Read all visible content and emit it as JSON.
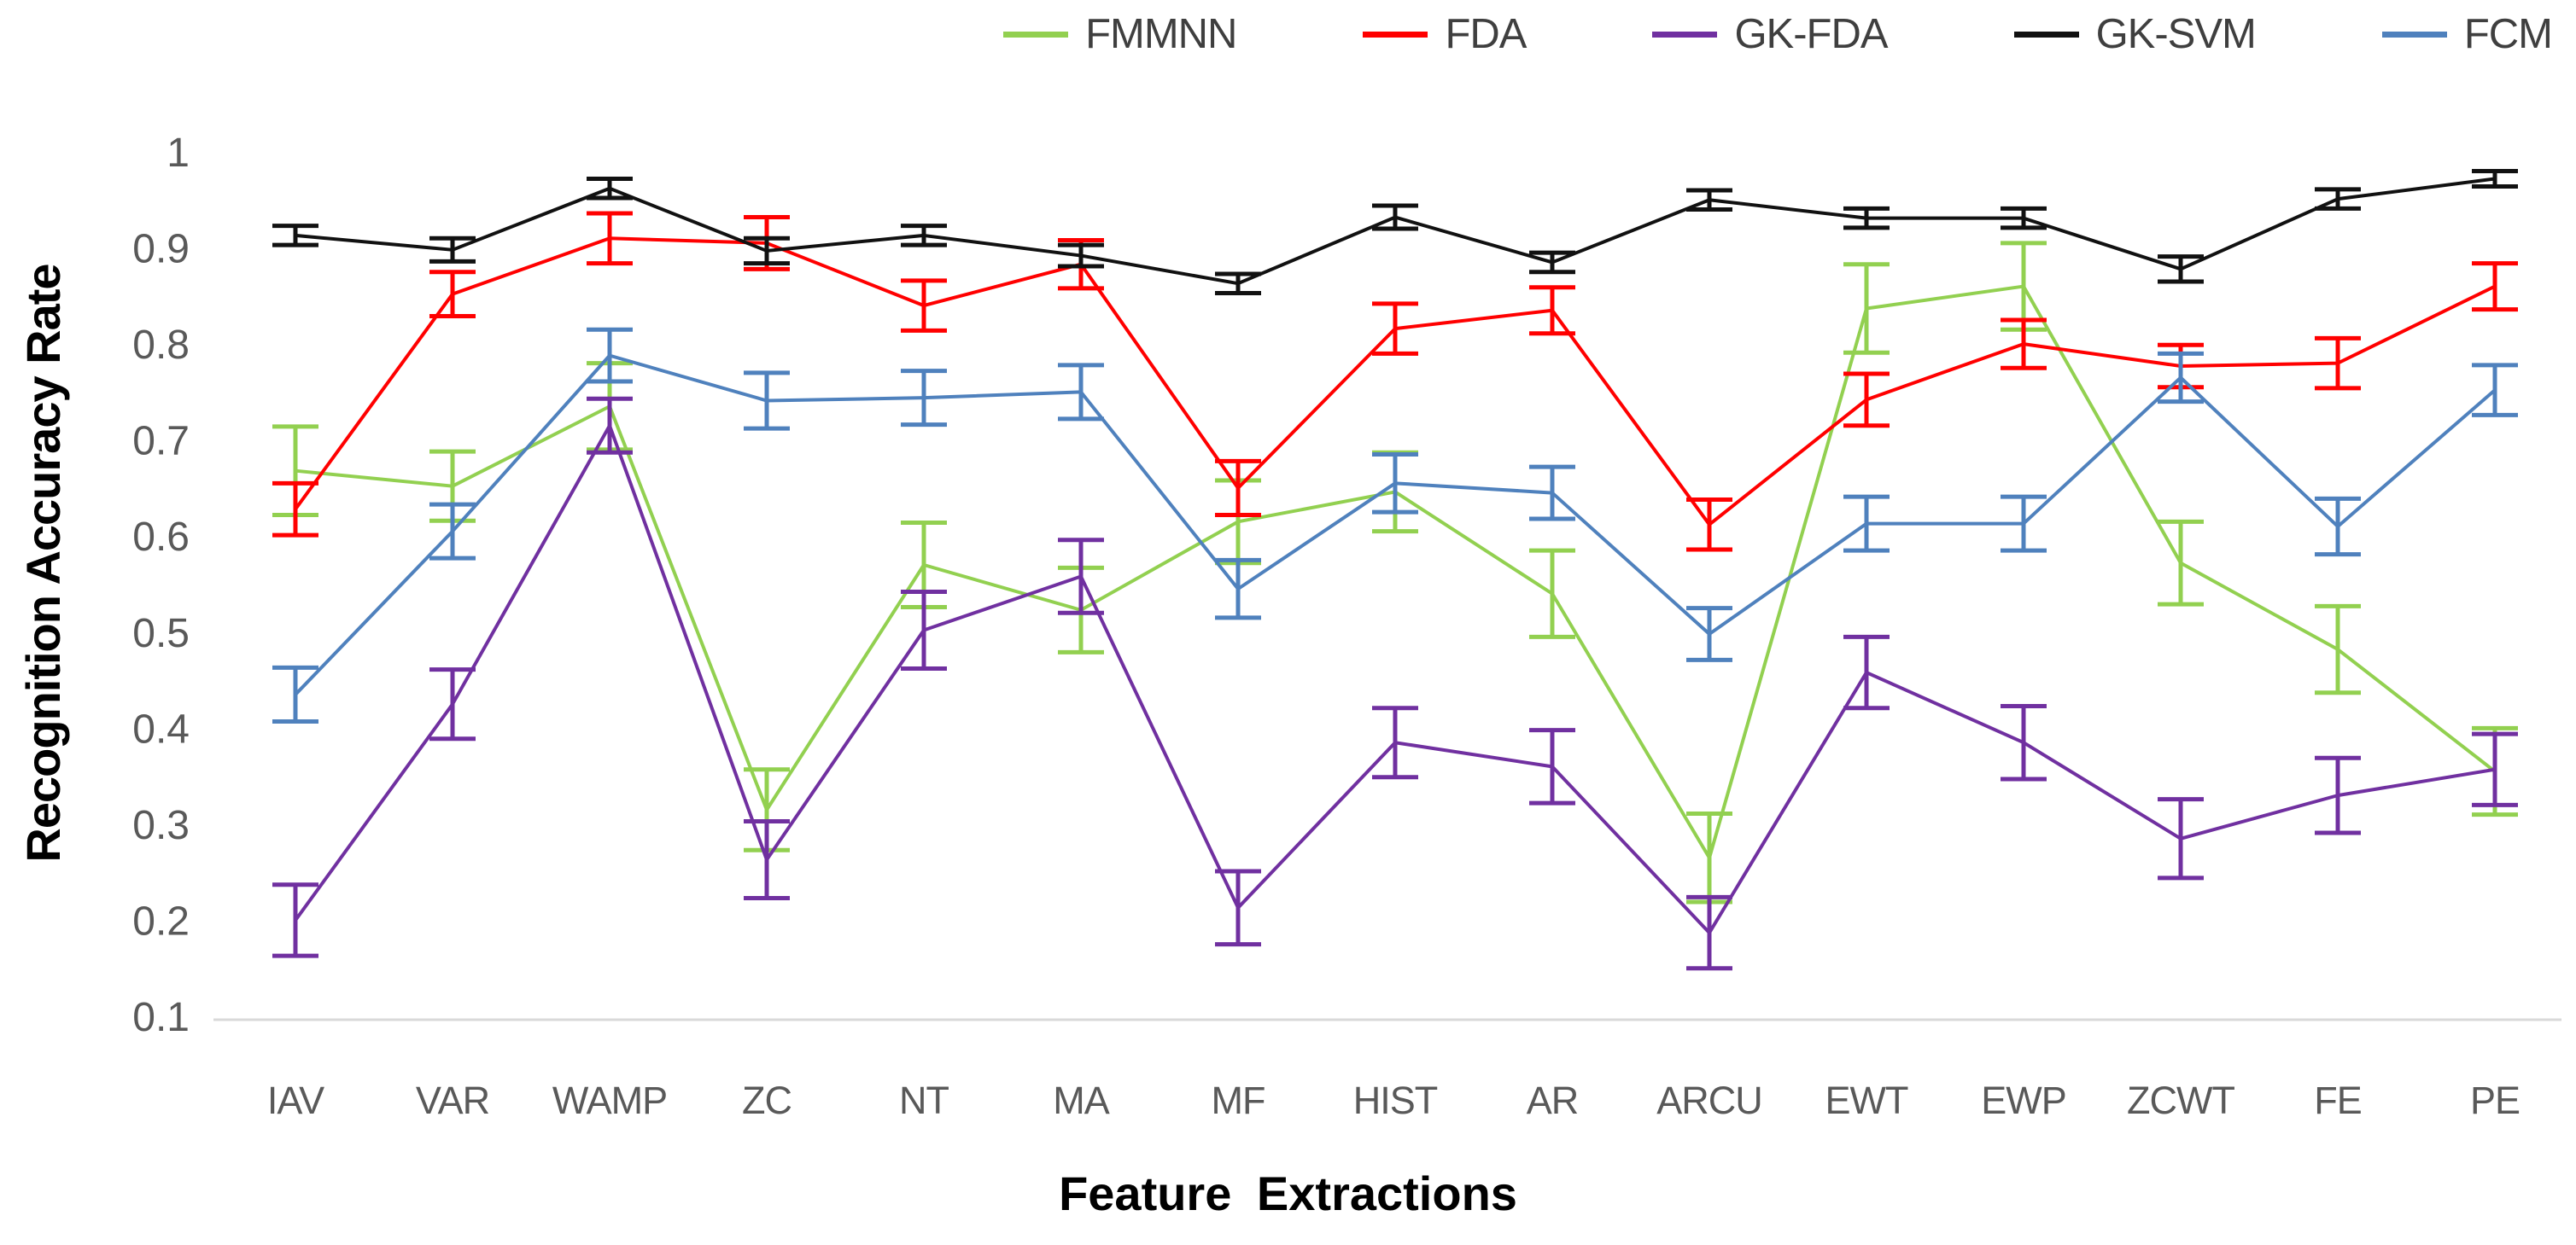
{
  "chart_data": {
    "type": "line",
    "title": "",
    "xlabel": "Feature Extractions",
    "ylabel": "Recognition Accuracy Rate",
    "categories": [
      "IAV",
      "VAR",
      "WAMP",
      "ZC",
      "NT",
      "MA",
      "MF",
      "HIST",
      "AR",
      "ARCU",
      "EWT",
      "EWP",
      "ZCWT",
      "FE",
      "PE"
    ],
    "ylim": [
      0.1,
      1.0
    ],
    "yticks": [
      1,
      0.9,
      0.8,
      0.7,
      0.6,
      0.5,
      0.4,
      0.3,
      0.2,
      0.1
    ],
    "ytick_labels": [
      "1",
      "0.9",
      "0.8",
      "0.7",
      "0.6",
      "0.5",
      "0.4",
      "0.3",
      "0.2",
      "0.1"
    ],
    "grid": false,
    "legend_position": "top-right",
    "error_bars": true,
    "axis_line_color": "#d9d9d9",
    "tick_label_color": "#595959",
    "series": [
      {
        "name": "FMMNN",
        "color": "#92d050",
        "values": [
          0.668,
          0.652,
          0.735,
          0.315,
          0.57,
          0.523,
          0.615,
          0.646,
          0.54,
          0.265,
          0.837,
          0.86,
          0.572,
          0.482,
          0.355
        ],
        "errors": [
          0.046,
          0.036,
          0.045,
          0.042,
          0.044,
          0.044,
          0.043,
          0.041,
          0.045,
          0.046,
          0.046,
          0.045,
          0.043,
          0.045,
          0.045
        ]
      },
      {
        "name": "FDA",
        "color": "#ff0000",
        "values": [
          0.628,
          0.852,
          0.91,
          0.905,
          0.84,
          0.883,
          0.65,
          0.816,
          0.835,
          0.612,
          0.742,
          0.8,
          0.777,
          0.78,
          0.86
        ],
        "errors": [
          0.027,
          0.023,
          0.026,
          0.027,
          0.026,
          0.025,
          0.028,
          0.026,
          0.024,
          0.026,
          0.027,
          0.025,
          0.022,
          0.026,
          0.024
        ]
      },
      {
        "name": "GK-FDA",
        "color": "#7030a0",
        "values": [
          0.2,
          0.425,
          0.715,
          0.263,
          0.502,
          0.558,
          0.213,
          0.385,
          0.36,
          0.187,
          0.458,
          0.385,
          0.285,
          0.33,
          0.357
        ],
        "errors": [
          0.037,
          0.036,
          0.028,
          0.04,
          0.04,
          0.038,
          0.038,
          0.036,
          0.038,
          0.037,
          0.037,
          0.038,
          0.041,
          0.039,
          0.037
        ]
      },
      {
        "name": "GK-SVM",
        "color": "#111111",
        "values": [
          0.913,
          0.898,
          0.962,
          0.897,
          0.913,
          0.892,
          0.863,
          0.932,
          0.885,
          0.95,
          0.931,
          0.931,
          0.878,
          0.951,
          0.972
        ],
        "errors": [
          0.01,
          0.012,
          0.01,
          0.013,
          0.01,
          0.011,
          0.01,
          0.012,
          0.01,
          0.01,
          0.01,
          0.01,
          0.013,
          0.01,
          0.008
        ]
      },
      {
        "name": "FCM",
        "color": "#4f81bd",
        "values": [
          0.435,
          0.605,
          0.788,
          0.741,
          0.744,
          0.75,
          0.545,
          0.655,
          0.645,
          0.498,
          0.613,
          0.613,
          0.765,
          0.61,
          0.752
        ],
        "errors": [
          0.028,
          0.028,
          0.027,
          0.029,
          0.028,
          0.028,
          0.03,
          0.03,
          0.027,
          0.027,
          0.028,
          0.028,
          0.025,
          0.029,
          0.026
        ]
      }
    ]
  }
}
